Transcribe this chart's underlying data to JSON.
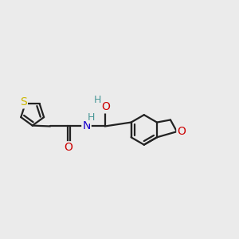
{
  "bg_color": "#ebebeb",
  "bond_color": "#222222",
  "bond_width": 1.6,
  "dbo": 0.06,
  "atom_colors": {
    "S": "#ccb800",
    "O": "#cc0000",
    "N": "#1800cc",
    "H_oh": "#4a9898",
    "H_nh": "#4a9898"
  },
  "figsize": [
    3.0,
    3.0
  ],
  "dpi": 100
}
